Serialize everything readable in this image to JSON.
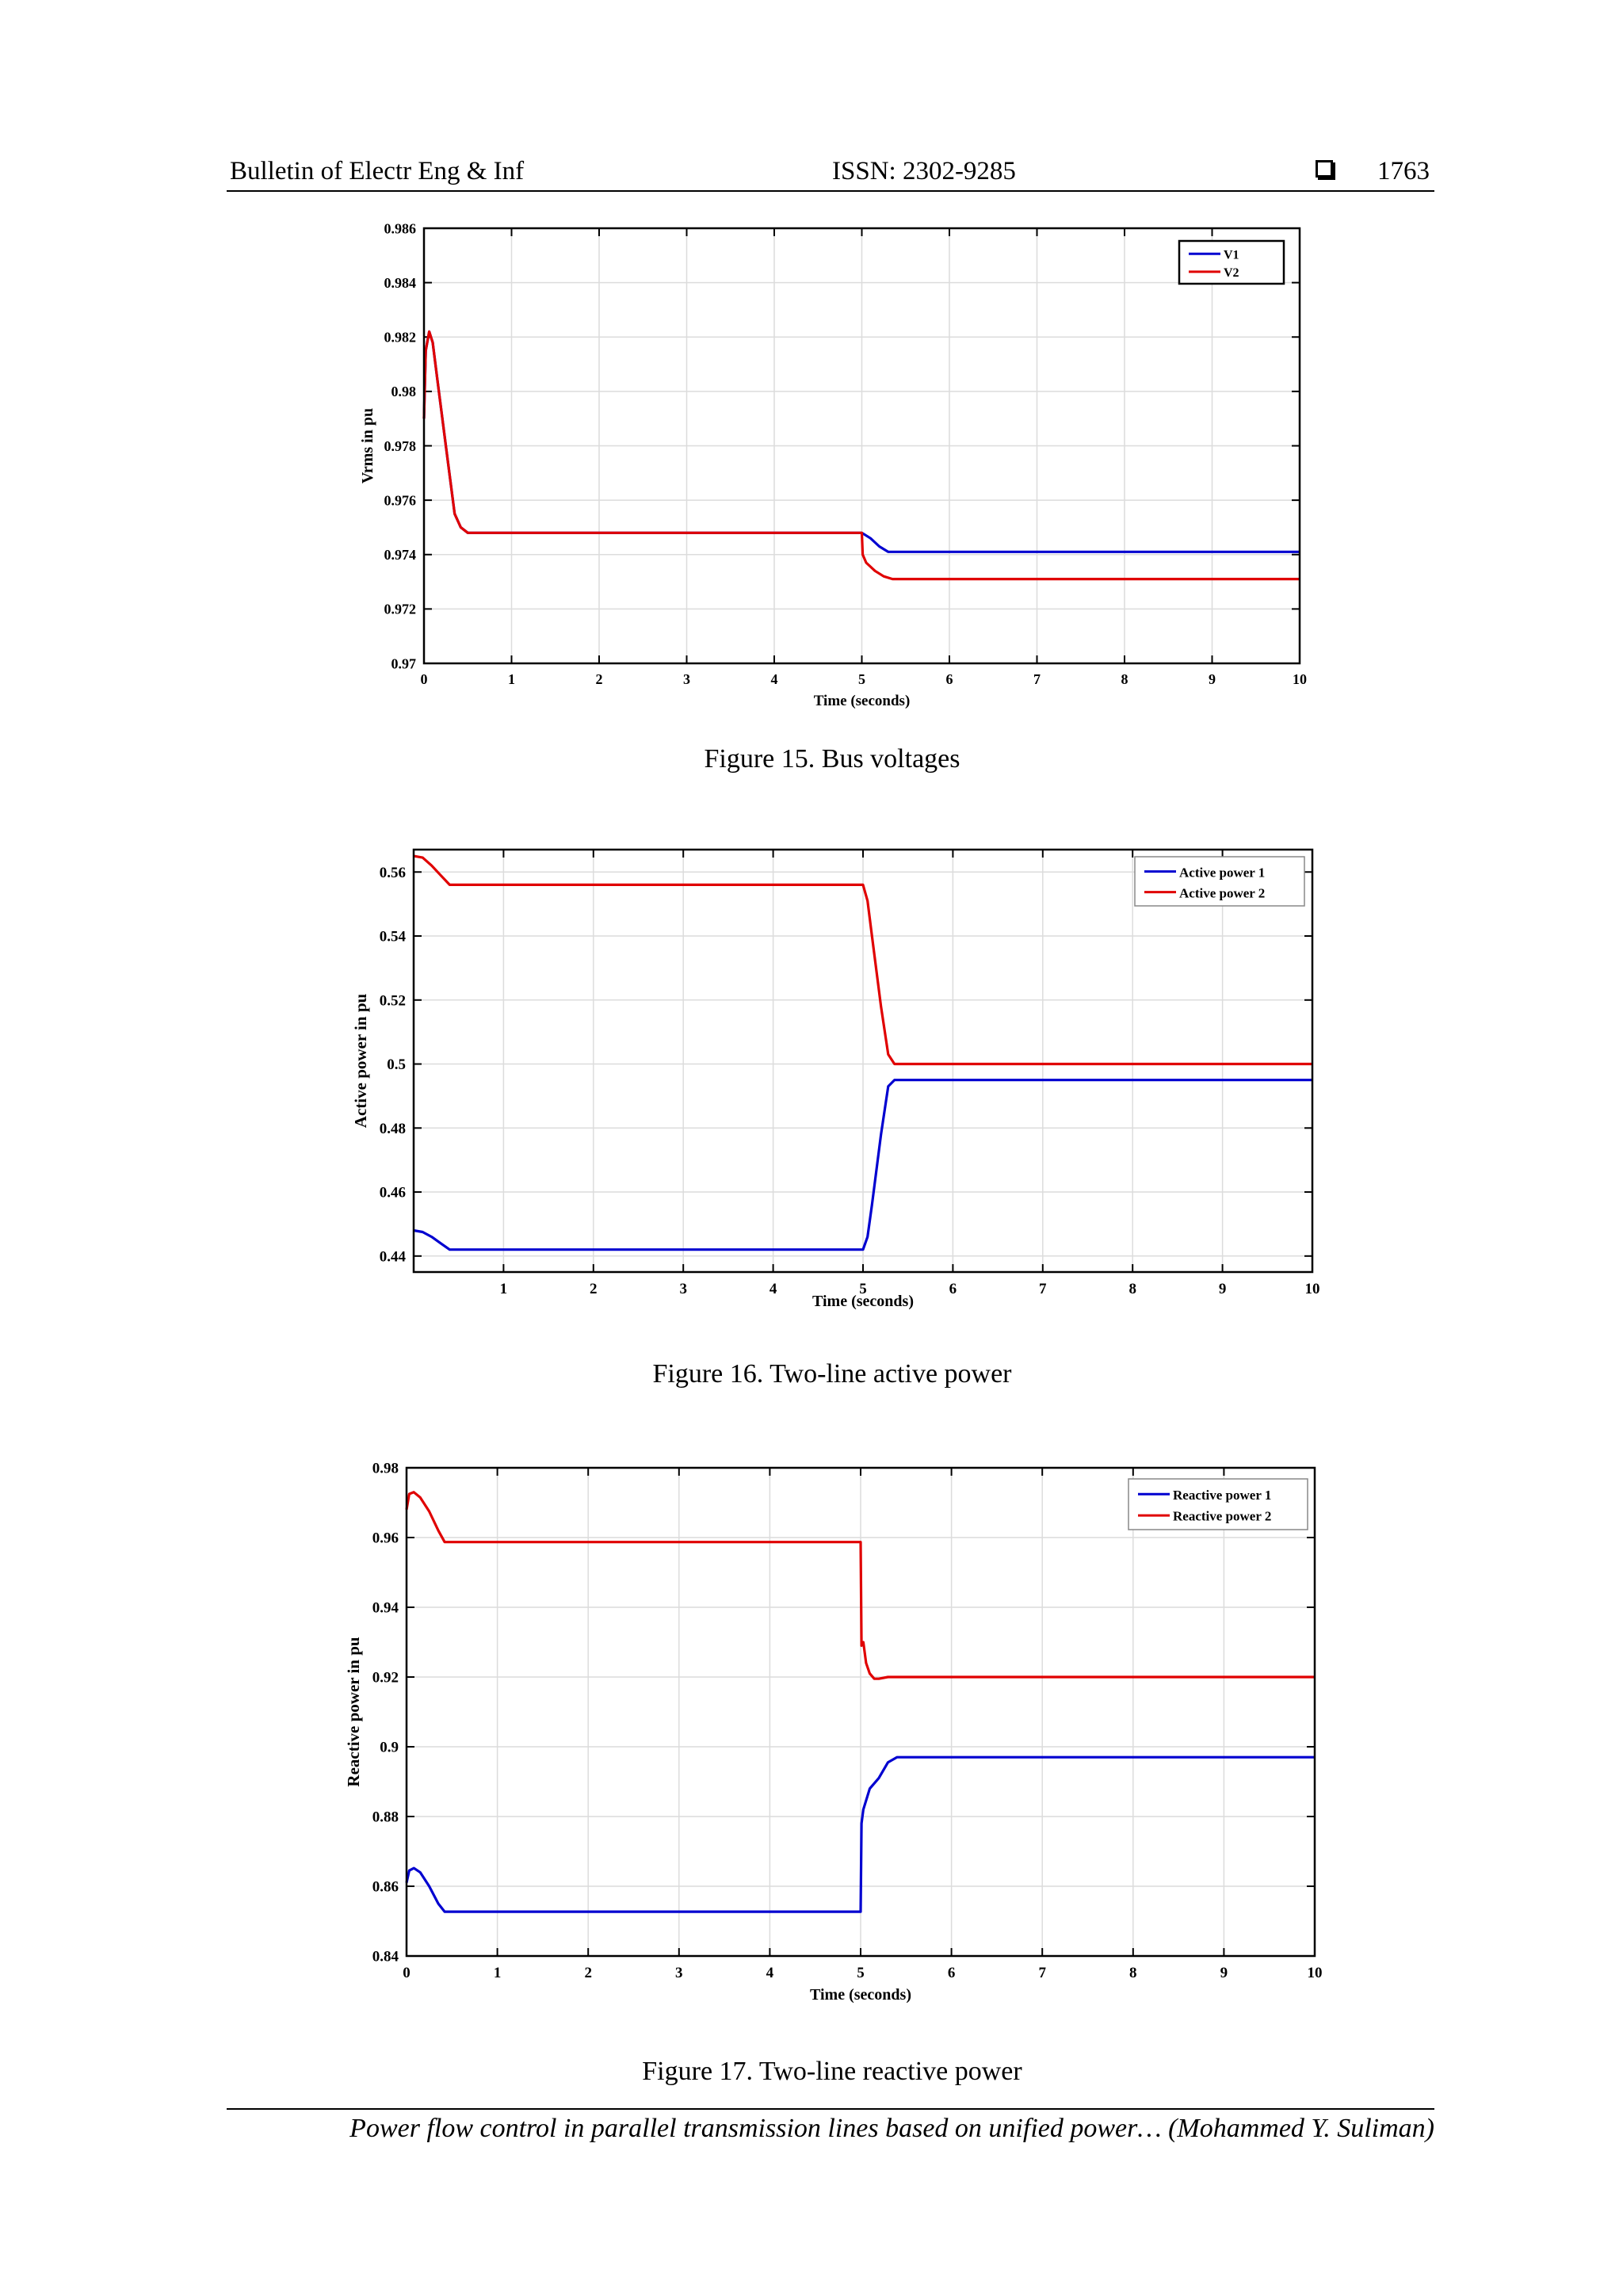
{
  "header": {
    "journal": "Bulletin of Electr Eng & Inf",
    "issn": "ISSN: 2302-9285",
    "page": "1763"
  },
  "footer": {
    "text": "Power flow control in parallel transmission lines based on unified power… (Mohammed Y. Suliman)"
  },
  "figures": [
    {
      "caption": "Figure 15. Bus voltages"
    },
    {
      "caption": "Figure 16. Two-line active power"
    },
    {
      "caption": "Figure 17. Two-line reactive power"
    }
  ],
  "colors": {
    "blue": "#0000d0",
    "red": "#e00000"
  },
  "chart_data": [
    {
      "type": "line",
      "xlabel": "Time (seconds)",
      "ylabel": "Vrms in pu",
      "xlim": [
        0,
        10
      ],
      "ylim": [
        0.97,
        0.986
      ],
      "xticks": [
        "0",
        "1",
        "2",
        "3",
        "4",
        "5",
        "6",
        "7",
        "8",
        "9",
        "10"
      ],
      "yticks": [
        "0.97",
        "0.972",
        "0.974",
        "0.976",
        "0.978",
        "0.98",
        "0.982",
        "0.984",
        "0.986"
      ],
      "grid": true,
      "legend": "top-right",
      "series": [
        {
          "name": "V1",
          "color": "blue",
          "x": [
            0,
            0.02,
            0.06,
            0.1,
            0.15,
            0.25,
            0.35,
            0.42,
            0.5,
            5.0,
            5.1,
            5.2,
            5.3,
            10
          ],
          "y": [
            0.979,
            0.9815,
            0.9822,
            0.9818,
            0.9805,
            0.978,
            0.9755,
            0.975,
            0.9748,
            0.9748,
            0.9746,
            0.9743,
            0.9741,
            0.9741
          ]
        },
        {
          "name": "V2",
          "color": "red",
          "x": [
            0,
            0.02,
            0.06,
            0.1,
            0.15,
            0.25,
            0.35,
            0.42,
            0.5,
            5.0,
            5.01,
            5.05,
            5.15,
            5.25,
            5.35,
            10
          ],
          "y": [
            0.979,
            0.9815,
            0.9822,
            0.9818,
            0.9805,
            0.978,
            0.9755,
            0.975,
            0.9748,
            0.9748,
            0.974,
            0.9737,
            0.9734,
            0.9732,
            0.9731,
            0.9731
          ]
        }
      ]
    },
    {
      "type": "line",
      "xlabel": "Time (seconds)",
      "ylabel": "Active power in pu",
      "xlim": [
        0,
        10
      ],
      "ylim": [
        0.435,
        0.567
      ],
      "xticks": [
        "1",
        "2",
        "3",
        "4",
        "5",
        "6",
        "7",
        "8",
        "9",
        "10"
      ],
      "xtick_values": [
        1,
        2,
        3,
        4,
        5,
        6,
        7,
        8,
        9,
        10
      ],
      "yticks": [
        "0.44",
        "0.46",
        "0.48",
        "0.5",
        "0.52",
        "0.54",
        "0.56"
      ],
      "ytick_values": [
        0.44,
        0.46,
        0.48,
        0.5,
        0.52,
        0.54,
        0.56
      ],
      "grid": true,
      "legend": "top-right",
      "series": [
        {
          "name": "Active power 1",
          "color": "blue",
          "x": [
            0,
            0.1,
            0.2,
            0.3,
            0.4,
            5.0,
            5.05,
            5.1,
            5.2,
            5.28,
            5.35,
            10
          ],
          "y": [
            0.448,
            0.4475,
            0.446,
            0.444,
            0.442,
            0.442,
            0.446,
            0.456,
            0.478,
            0.493,
            0.495,
            0.495
          ]
        },
        {
          "name": "Active power 2",
          "color": "red",
          "x": [
            0,
            0.1,
            0.2,
            0.3,
            0.4,
            5.0,
            5.05,
            5.1,
            5.2,
            5.28,
            5.35,
            10
          ],
          "y": [
            0.565,
            0.5645,
            0.562,
            0.559,
            0.556,
            0.556,
            0.551,
            0.54,
            0.518,
            0.503,
            0.5,
            0.5
          ]
        }
      ]
    },
    {
      "type": "line",
      "xlabel": "Time (seconds)",
      "ylabel": "Reactive power in pu",
      "xlim": [
        0,
        10
      ],
      "ylim": [
        0.84,
        0.98
      ],
      "xticks": [
        "0",
        "1",
        "2",
        "3",
        "4",
        "5",
        "6",
        "7",
        "8",
        "9",
        "10"
      ],
      "yticks": [
        "0.84",
        "0.86",
        "0.88",
        "0.9",
        "0.92",
        "0.94",
        "0.96",
        "0.98"
      ],
      "grid": true,
      "legend": "top-right",
      "series": [
        {
          "name": "Reactive power 1",
          "color": "blue",
          "x": [
            0,
            0.03,
            0.08,
            0.15,
            0.25,
            0.35,
            0.42,
            5.0,
            5.01,
            5.03,
            5.1,
            5.2,
            5.3,
            5.4,
            10
          ],
          "y": [
            0.861,
            0.8645,
            0.8652,
            0.864,
            0.86,
            0.855,
            0.8527,
            0.8527,
            0.878,
            0.882,
            0.888,
            0.891,
            0.8955,
            0.897,
            0.897
          ]
        },
        {
          "name": "Reactive power 2",
          "color": "red",
          "x": [
            0,
            0.03,
            0.08,
            0.15,
            0.25,
            0.35,
            0.42,
            5.0,
            5.01,
            5.03,
            5.06,
            5.1,
            5.15,
            5.2,
            5.3,
            10
          ],
          "y": [
            0.968,
            0.9725,
            0.973,
            0.9715,
            0.9675,
            0.962,
            0.9587,
            0.9587,
            0.929,
            0.93,
            0.924,
            0.921,
            0.9195,
            0.9195,
            0.92,
            0.92
          ]
        }
      ]
    }
  ]
}
